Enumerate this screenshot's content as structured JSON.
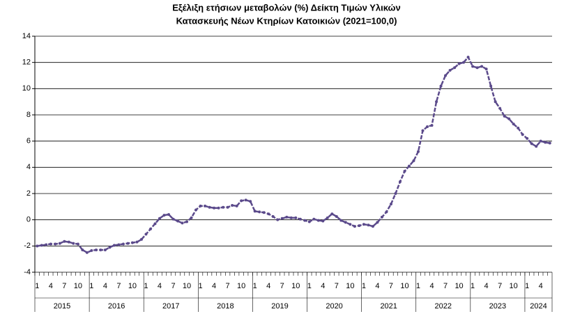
{
  "chart_data": {
    "type": "line",
    "title": [
      "Εξέλιξη ετήσιων μεταβολών (%) Δείκτη Τιμών Υλικών",
      "Κατασκευής Νέων Κτηρίων Κατοικιών (2021=100,0)"
    ],
    "categories": [
      "1",
      null,
      null,
      "4",
      null,
      null,
      "7",
      null,
      null,
      "10",
      null,
      null,
      "1",
      null,
      null,
      "4",
      null,
      null,
      "7",
      null,
      null,
      "10",
      null,
      null,
      "1",
      null,
      null,
      "4",
      null,
      null,
      "7",
      null,
      null,
      "10",
      null,
      null,
      "1",
      null,
      null,
      "4",
      null,
      null,
      "7",
      null,
      null,
      "10",
      null,
      null,
      "1",
      null,
      null,
      "4",
      null,
      null,
      "7",
      null,
      null,
      "10",
      null,
      null,
      "1",
      null,
      null,
      "4",
      null,
      null,
      "7",
      null,
      null,
      "10",
      null,
      null,
      "1",
      null,
      null,
      "4",
      null,
      null,
      "7",
      null,
      null,
      "10",
      null,
      null,
      "1",
      null,
      null,
      "4",
      null,
      null,
      "7",
      null,
      null,
      "10",
      null,
      null,
      "1",
      null,
      null,
      "4",
      null,
      null,
      "7",
      null,
      null,
      "10",
      null,
      null,
      "1",
      null,
      null,
      "4",
      null,
      null
    ],
    "groups": [
      "2015",
      "2016",
      "2017",
      "2018",
      "2019",
      "2020",
      "2021",
      "2022",
      "2023",
      "2024"
    ],
    "series": [
      {
        "color": "#5b4a8b",
        "values": [
          -2.0,
          -1.95,
          -1.9,
          -1.85,
          -1.85,
          -1.8,
          -1.65,
          -1.7,
          -1.8,
          -1.85,
          -2.3,
          -2.5,
          -2.35,
          -2.3,
          -2.3,
          -2.3,
          -2.1,
          -1.95,
          -1.9,
          -1.85,
          -1.8,
          -1.75,
          -1.7,
          -1.5,
          -1.1,
          -0.7,
          -0.3,
          0.1,
          0.35,
          0.4,
          0.05,
          -0.1,
          -0.25,
          -0.15,
          0.15,
          0.75,
          1.05,
          1.05,
          0.95,
          0.9,
          0.9,
          0.95,
          0.95,
          1.1,
          1.05,
          1.45,
          1.5,
          1.4,
          0.65,
          0.6,
          0.55,
          0.45,
          0.25,
          0.0,
          0.1,
          0.2,
          0.15,
          0.15,
          0.05,
          -0.05,
          -0.15,
          0.05,
          -0.05,
          -0.1,
          0.15,
          0.45,
          0.25,
          -0.05,
          -0.2,
          -0.35,
          -0.5,
          -0.45,
          -0.35,
          -0.4,
          -0.5,
          -0.2,
          0.2,
          0.6,
          1.2,
          2.0,
          2.9,
          3.7,
          4.1,
          4.5,
          5.2,
          6.8,
          7.1,
          7.2,
          9.0,
          10.2,
          11.0,
          11.4,
          11.6,
          11.9,
          12.0,
          12.4,
          11.7,
          11.6,
          11.7,
          11.5,
          10.2,
          9.0,
          8.5,
          7.9,
          7.7,
          7.3,
          7.0,
          6.5,
          6.2,
          5.8,
          5.6,
          6.0,
          5.9,
          5.85
        ]
      }
    ],
    "ylim": [
      -4,
      14
    ],
    "yticks": [
      -4,
      -2,
      0,
      2,
      4,
      6,
      8,
      10,
      12,
      14
    ],
    "grid": true
  }
}
